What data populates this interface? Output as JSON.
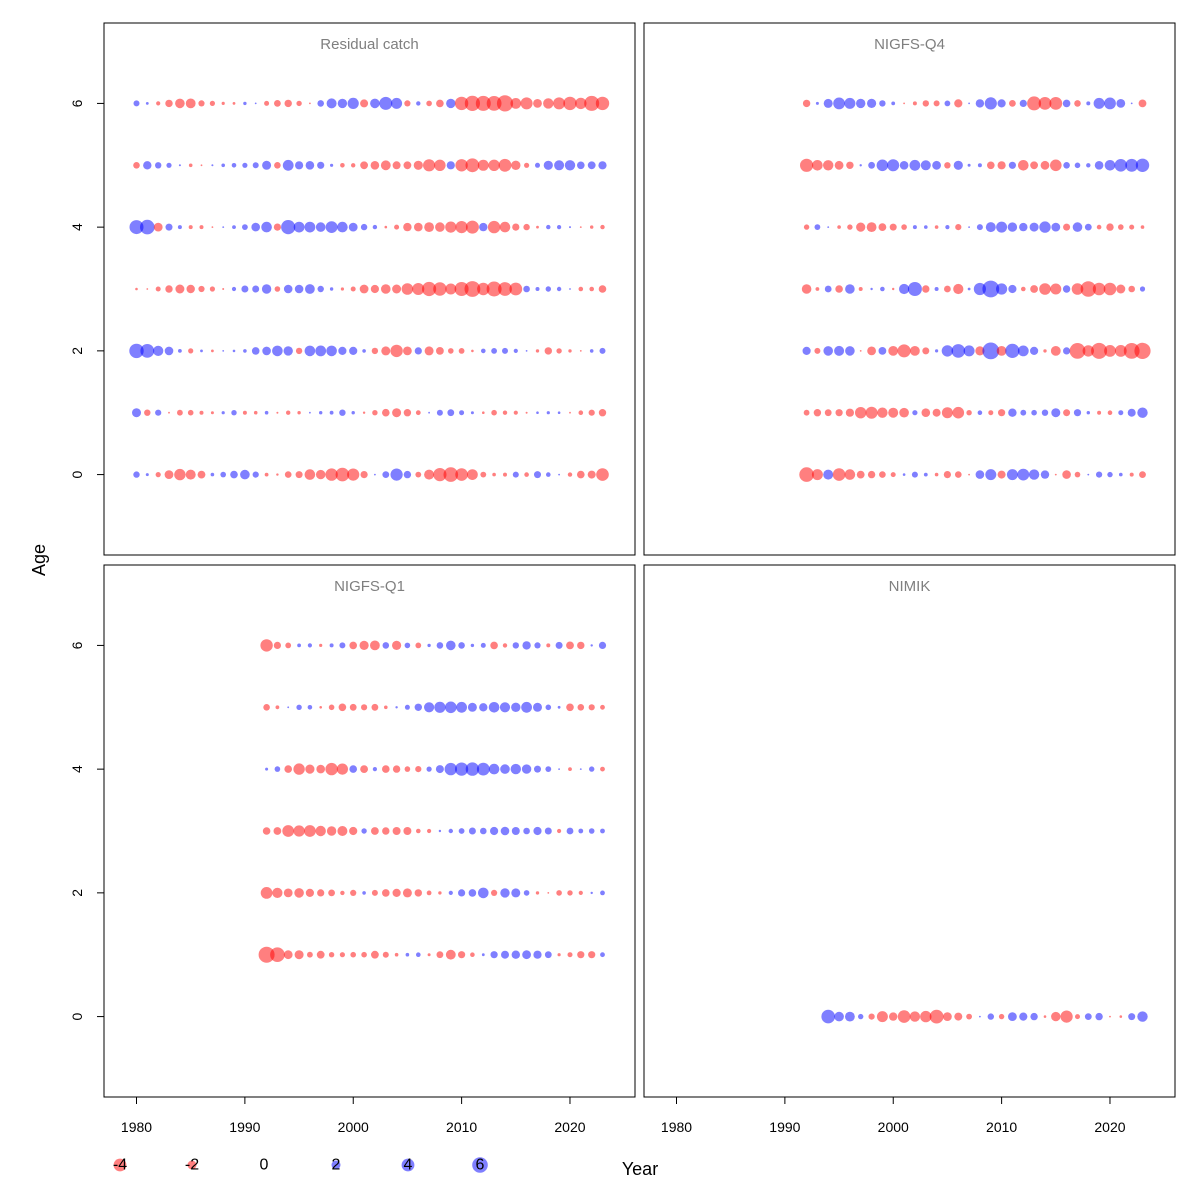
{
  "chart_data": {
    "type": "scatter",
    "subtype": "bubble",
    "xlabel": "Year",
    "ylabel": "Age",
    "xlim": [
      1977,
      2026
    ],
    "ylim": [
      -1.3,
      7.3
    ],
    "xticks": [
      1980,
      1990,
      2000,
      2010,
      2020
    ],
    "yticks": [
      0,
      2,
      4,
      6
    ],
    "colors": {
      "positive": "#0000ff",
      "negative": "#ff0000"
    },
    "size_legend": [
      -4,
      -2,
      0,
      2,
      4,
      6
    ],
    "panels": [
      {
        "title": "Residual catch",
        "pattern_seed": 3,
        "rows": [
          {
            "age": 0,
            "years": [
              1980,
              2023
            ],
            "s": [
              1.2,
              -3.2,
              2.6,
              -1.2,
              -4.8,
              3.3,
              -5.6,
              1.3,
              0.8,
              -3.2
            ]
          },
          {
            "age": 1,
            "years": [
              1980,
              2023
            ],
            "s": [
              2.3,
              -1.4,
              1.2,
              -0.6,
              0.9,
              -1.7,
              1.1,
              -0.8,
              0.5,
              -1.2
            ]
          },
          {
            "age": 2,
            "years": [
              1980,
              2023
            ],
            "s": [
              6.0,
              -0.6,
              0.3,
              3.0,
              2.6,
              -3.0,
              -1.6,
              1.4,
              -1.2,
              0.8
            ]
          },
          {
            "age": 3,
            "years": [
              1980,
              2023
            ],
            "s": [
              0.4,
              -2.0,
              0.8,
              3.1,
              -0.4,
              -3.4,
              -4.0,
              -5.8,
              0.9,
              -1.4
            ]
          },
          {
            "age": 4,
            "years": [
              1980,
              2023
            ],
            "s": [
              5.6,
              -0.6,
              0.5,
              4.4,
              2.6,
              -0.9,
              -3.6,
              -3.0,
              0.6,
              -0.5
            ]
          },
          {
            "age": 5,
            "years": [
              1980,
              2023
            ],
            "s": [
              2.4,
              -0.3,
              0.6,
              3.0,
              -0.5,
              -2.3,
              -3.3,
              -4.2,
              2.3,
              1.8
            ]
          },
          {
            "age": 6,
            "years": [
              1980,
              2023
            ],
            "s": [
              1.0,
              -2.4,
              0.7,
              -1.8,
              3.2,
              4.3,
              -3.7,
              -5.3,
              -2.6,
              -5.0
            ]
          }
        ]
      },
      {
        "title": "NIGFS-Q4",
        "pattern_seed": 7,
        "rows": [
          {
            "age": 0,
            "years": [
              1992,
              2023
            ],
            "s": [
              -5.2,
              -3.2,
              -1.2,
              1.0,
              -2.0,
              4.0,
              3.3,
              -1.6,
              1.2,
              -1.0
            ]
          },
          {
            "age": 1,
            "years": [
              1992,
              2023
            ],
            "s": [
              -0.8,
              -2.2,
              -3.2,
              -1.3,
              -3.0,
              2.3,
              1.2,
              1.9,
              -0.9,
              2.4
            ]
          },
          {
            "age": 2,
            "years": [
              1992,
              2023
            ],
            "s": [
              1.6,
              3.0,
              -3.8,
              -3.3,
              4.2,
              5.8,
              2.4,
              -4.6,
              -5.2,
              -5.8
            ]
          },
          {
            "age": 3,
            "years": [
              1992,
              2023
            ],
            "s": [
              -2.2,
              3.2,
              -1.7,
              4.4,
              -3.6,
              7.4,
              -2.3,
              -4.2,
              -4.8,
              0.6
            ]
          },
          {
            "age": 4,
            "years": [
              1992,
              2023
            ],
            "s": [
              1.4,
              -0.8,
              -2.6,
              0.7,
              -1.6,
              3.2,
              1.8,
              3.6,
              -1.2,
              -0.3
            ]
          },
          {
            "age": 5,
            "years": [
              1992,
              2023
            ],
            "s": [
              -4.2,
              -1.9,
              2.6,
              3.3,
              1.9,
              -2.4,
              -2.3,
              -3.0,
              3.3,
              4.0
            ]
          },
          {
            "age": 6,
            "years": [
              1992,
              2023
            ],
            "s": [
              -1.3,
              3.8,
              0.9,
              -0.7,
              -1.8,
              3.3,
              -4.8,
              -3.6,
              3.7,
              -1.4
            ]
          }
        ]
      },
      {
        "title": "NIGFS-Q1",
        "pattern_seed": 11,
        "rows": [
          {
            "age": 1,
            "years": [
              1992,
              2023
            ],
            "s": [
              -5.4,
              -1.4,
              -1.0,
              -1.3,
              0.8,
              -2.6,
              0.9,
              3.4,
              -1.0,
              -1.2
            ]
          },
          {
            "age": 2,
            "years": [
              1992,
              2023
            ],
            "s": [
              -3.0,
              -1.6,
              -0.8,
              -0.9,
              -2.0,
              0.7,
              2.6,
              1.2,
              -1.0,
              0.6
            ]
          },
          {
            "age": 3,
            "years": [
              1992,
              2023
            ],
            "s": [
              -1.2,
              -4.4,
              -2.0,
              -1.8,
              -1.0,
              0.9,
              1.4,
              1.6,
              1.0,
              0.6
            ]
          },
          {
            "age": 4,
            "years": [
              1992,
              2023
            ],
            "s": [
              -0.4,
              -3.6,
              -2.7,
              -1.3,
              -1.1,
              3.4,
              3.6,
              3.0,
              -0.7,
              1.2
            ]
          },
          {
            "age": 5,
            "years": [
              1992,
              2023
            ],
            "s": [
              -0.9,
              0.8,
              -1.3,
              -0.9,
              1.2,
              3.4,
              2.2,
              3.9,
              -1.4,
              -0.6
            ]
          },
          {
            "age": 6,
            "years": [
              1992,
              2023
            ],
            "s": [
              -3.2,
              1.0,
              -1.8,
              -2.4,
              -1.3,
              3.0,
              -2.2,
              2.3,
              -3.0,
              1.4
            ]
          }
        ]
      },
      {
        "title": "NIMIK",
        "pattern_seed": 13,
        "rows": [
          {
            "age": 0,
            "years": [
              1994,
              2023
            ],
            "s": [
              3.7,
              1.8,
              -2.6,
              -3.1,
              -4.2,
              -1.6,
              0.5,
              1.8,
              1.4,
              -4.4,
              2.4,
              -0.8,
              2.2
            ]
          }
        ]
      }
    ]
  }
}
